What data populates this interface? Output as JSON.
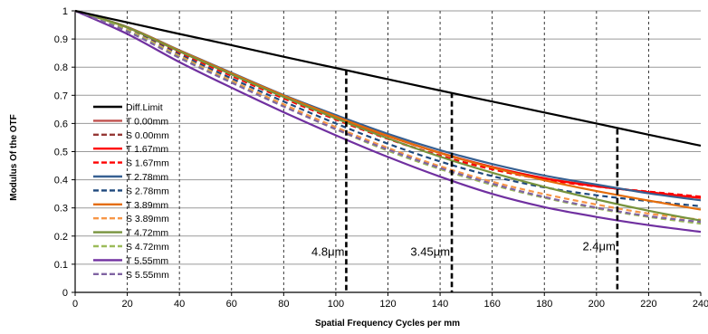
{
  "chart_data": {
    "type": "line",
    "title": "",
    "xlabel": "Spatial Frequency Cycles per mm",
    "ylabel": "Modulus Of  the OTF",
    "xlim": [
      0,
      240
    ],
    "ylim": [
      0,
      1
    ],
    "xticks": [
      0,
      20,
      40,
      60,
      80,
      100,
      120,
      140,
      160,
      180,
      200,
      220,
      240
    ],
    "yticks": [
      0,
      0.1,
      0.2,
      0.3,
      0.4,
      0.5,
      0.6,
      0.7,
      0.8,
      0.9,
      1
    ],
    "ytick_labels": [
      "0",
      "0.1",
      "0.2",
      "0.3",
      "0.4",
      "0.5",
      "0.6",
      "0.7",
      "0.8",
      "0.9",
      "1"
    ],
    "grid": {
      "horizontal": "solid",
      "vertical": "dashed"
    },
    "legend_position": "bottom-left",
    "x": [
      0,
      20,
      40,
      60,
      80,
      100,
      120,
      140,
      160,
      180,
      200,
      220,
      240
    ],
    "series": [
      {
        "name": "Diff.Limit",
        "color": "#000000",
        "dash": "solid",
        "width": 2.2,
        "values": [
          1,
          0.959,
          0.918,
          0.878,
          0.837,
          0.797,
          0.757,
          0.717,
          0.678,
          0.639,
          0.6,
          0.56,
          0.521
        ]
      },
      {
        "name": "T 0.00mm",
        "color": "#c0504d",
        "dash": "solid",
        "width": 2.2,
        "values": [
          1,
          0.942,
          0.857,
          0.776,
          0.697,
          0.624,
          0.556,
          0.496,
          0.446,
          0.406,
          0.378,
          0.355,
          0.335
        ]
      },
      {
        "name": "S 0.00mm",
        "color": "#953735",
        "dash": "dashed",
        "width": 2.2,
        "values": [
          1,
          0.94,
          0.853,
          0.77,
          0.69,
          0.615,
          0.546,
          0.486,
          0.438,
          0.402,
          0.377,
          0.357,
          0.338
        ]
      },
      {
        "name": "T 1.67mm",
        "color": "#ff0000",
        "dash": "solid",
        "width": 2.2,
        "values": [
          1,
          0.941,
          0.856,
          0.775,
          0.696,
          0.623,
          0.555,
          0.495,
          0.445,
          0.405,
          0.377,
          0.356,
          0.336
        ]
      },
      {
        "name": "S 1.67mm",
        "color": "#ff0000",
        "dash": "dashed",
        "width": 2.2,
        "values": [
          1,
          0.939,
          0.852,
          0.769,
          0.689,
          0.614,
          0.545,
          0.485,
          0.437,
          0.401,
          0.376,
          0.358,
          0.34
        ]
      },
      {
        "name": "T 2.78mm",
        "color": "#376092",
        "dash": "solid",
        "width": 2.2,
        "values": [
          1,
          0.943,
          0.86,
          0.78,
          0.701,
          0.63,
          0.563,
          0.505,
          0.456,
          0.415,
          0.383,
          0.352,
          0.327
        ]
      },
      {
        "name": "S 2.78mm",
        "color": "#1f497d",
        "dash": "dashed",
        "width": 2.2,
        "values": [
          1,
          0.935,
          0.845,
          0.76,
          0.678,
          0.6,
          0.528,
          0.465,
          0.413,
          0.373,
          0.345,
          0.324,
          0.306
        ]
      },
      {
        "name": "T 3.89mm",
        "color": "#e46c0a",
        "dash": "solid",
        "width": 2.2,
        "values": [
          1,
          0.942,
          0.859,
          0.778,
          0.699,
          0.625,
          0.556,
          0.495,
          0.443,
          0.398,
          0.36,
          0.326,
          0.294
        ]
      },
      {
        "name": "S 3.89mm",
        "color": "#f79646",
        "dash": "dashed",
        "width": 2.2,
        "values": [
          1,
          0.933,
          0.84,
          0.752,
          0.668,
          0.587,
          0.513,
          0.448,
          0.393,
          0.349,
          0.312,
          0.28,
          0.258
        ]
      },
      {
        "name": "T 4.72mm",
        "color": "#77933c",
        "dash": "solid",
        "width": 2.2,
        "values": [
          1,
          0.941,
          0.856,
          0.774,
          0.694,
          0.618,
          0.547,
          0.482,
          0.425,
          0.375,
          0.33,
          0.29,
          0.255
        ]
      },
      {
        "name": "S 4.72mm",
        "color": "#9bbb59",
        "dash": "dashed",
        "width": 2.2,
        "values": [
          1,
          0.931,
          0.836,
          0.747,
          0.661,
          0.579,
          0.503,
          0.438,
          0.382,
          0.336,
          0.298,
          0.268,
          0.244
        ]
      },
      {
        "name": "T 5.55mm",
        "color": "#7030a0",
        "dash": "solid",
        "width": 2.2,
        "values": [
          1,
          0.918,
          0.818,
          0.727,
          0.64,
          0.558,
          0.481,
          0.411,
          0.35,
          0.303,
          0.268,
          0.239,
          0.215
        ]
      },
      {
        "name": "S 5.55mm",
        "color": "#8064a2",
        "dash": "dashed",
        "width": 2.2,
        "values": [
          1,
          0.927,
          0.833,
          0.745,
          0.66,
          0.58,
          0.507,
          0.442,
          0.386,
          0.339,
          0.301,
          0.271,
          0.25
        ]
      }
    ],
    "markers": [
      {
        "label": "4.8μm",
        "x": 104,
        "y": 0.79
      },
      {
        "label": "3.45μm",
        "x": 144.5,
        "y": 0.71
      },
      {
        "label": "2.4μm",
        "x": 208,
        "y": 0.58
      }
    ]
  }
}
